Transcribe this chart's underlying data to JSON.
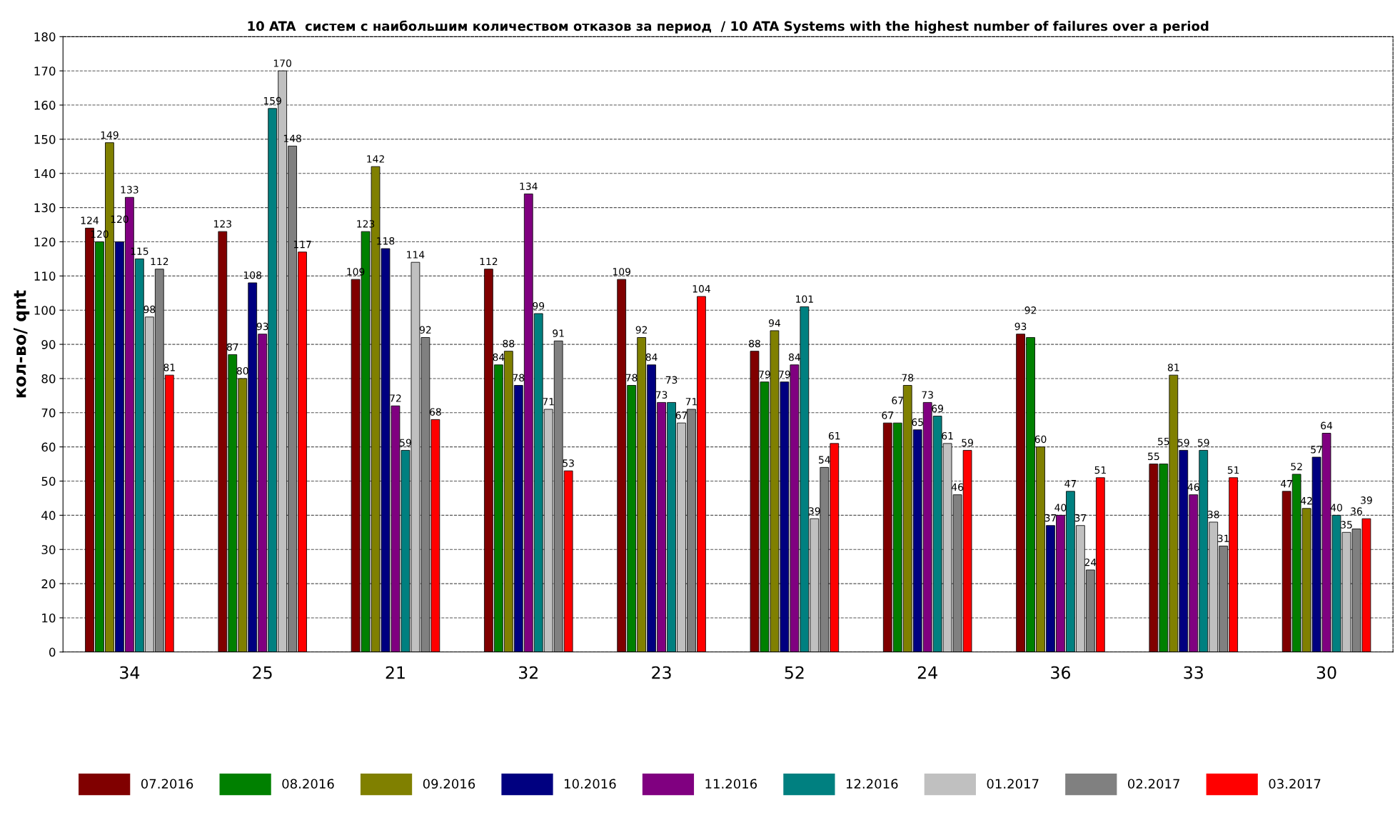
{
  "chart_data": {
    "type": "bar",
    "title": "10 ATA  систем с наибольшим количеством отказов за период  / 10 ATA Systems with the highest number of failures over a period",
    "ylabel": "кол-во/ qnt",
    "categories": [
      "34",
      "25",
      "21",
      "32",
      "23",
      "52",
      "24",
      "36",
      "33",
      "30"
    ],
    "series": [
      {
        "name": "07.2016",
        "color": "#800000",
        "values": [
          124,
          123,
          109,
          112,
          109,
          88,
          67,
          93,
          55,
          47
        ]
      },
      {
        "name": "08.2016",
        "color": "#008000",
        "values": [
          120,
          87,
          123,
          84,
          78,
          79,
          67,
          92,
          55,
          52
        ]
      },
      {
        "name": "09.2016",
        "color": "#808000",
        "values": [
          149,
          80,
          142,
          88,
          92,
          94,
          78,
          60,
          81,
          42
        ]
      },
      {
        "name": "10.2016",
        "color": "#000080",
        "values": [
          120,
          108,
          118,
          78,
          84,
          79,
          65,
          37,
          59,
          57
        ]
      },
      {
        "name": "11.2016",
        "color": "#800080",
        "values": [
          133,
          93,
          72,
          134,
          73,
          84,
          73,
          40,
          46,
          64
        ]
      },
      {
        "name": "12.2016",
        "color": "#008080",
        "values": [
          115,
          159,
          59,
          99,
          73,
          101,
          69,
          47,
          59,
          40
        ]
      },
      {
        "name": "01.2017",
        "color": "#c0c0c0",
        "values": [
          98,
          170,
          114,
          71,
          67,
          39,
          61,
          37,
          38,
          35
        ]
      },
      {
        "name": "02.2017",
        "color": "#808080",
        "values": [
          112,
          148,
          92,
          91,
          71,
          54,
          46,
          24,
          31,
          36
        ]
      },
      {
        "name": "03.2017",
        "color": "#ff0000",
        "values": [
          81,
          117,
          68,
          53,
          104,
          61,
          59,
          51,
          51,
          39
        ]
      }
    ],
    "ylim": [
      0,
      180
    ],
    "yticks": [
      0,
      10,
      20,
      30,
      40,
      50,
      60,
      70,
      80,
      90,
      100,
      110,
      120,
      130,
      140,
      150,
      160,
      170,
      180
    ],
    "grid": "y",
    "legend": "bottom",
    "data_labels": true
  }
}
